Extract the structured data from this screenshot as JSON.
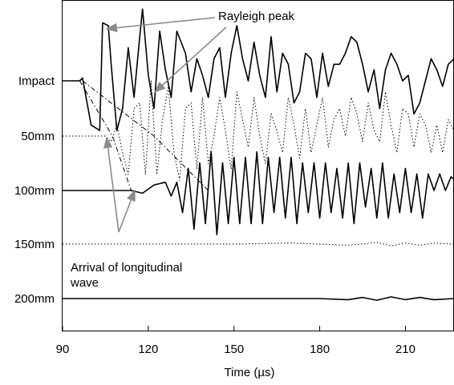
{
  "chart_data": {
    "type": "line",
    "xlabel": "Time (µs)",
    "ylabel": "",
    "xlim": [
      90,
      227
    ],
    "x_ticks": [
      90,
      120,
      150,
      180,
      210
    ],
    "grid": false,
    "legend": "none",
    "rows": [
      "Impact",
      "50mm",
      "100mm",
      "150mm",
      "200mm"
    ],
    "series": [
      {
        "name": "Impact",
        "style": "solid",
        "x": [
          90,
          96,
          97,
          100,
          103,
          104,
          106,
          107,
          109,
          111,
          113,
          115,
          117,
          118,
          120,
          122,
          124,
          126,
          128,
          130,
          133,
          135,
          137,
          139,
          141,
          143,
          145,
          147,
          149,
          151,
          153,
          155,
          157,
          159,
          161,
          163,
          165,
          167,
          169,
          171,
          173,
          175,
          177,
          179,
          181,
          183,
          185,
          187,
          189,
          191,
          193,
          195,
          197,
          199,
          201,
          203,
          205,
          207,
          209,
          211,
          213,
          215,
          217,
          219,
          221,
          223,
          225,
          227
        ],
        "y": [
          0,
          0,
          0.05,
          -0.8,
          -0.9,
          1.05,
          1.0,
          0.3,
          -0.9,
          -0.5,
          0.6,
          -0.3,
          0.8,
          1.3,
          0.1,
          -0.5,
          0.9,
          0.2,
          -0.3,
          0.9,
          0.5,
          -0.2,
          0.4,
          0.1,
          -0.3,
          0.4,
          0.6,
          -0.3,
          0.5,
          1.0,
          0.4,
          0.0,
          0.7,
          0.1,
          -0.3,
          0.8,
          -0.2,
          0.5,
          0.3,
          -0.4,
          -0.2,
          0.5,
          0.4,
          -0.3,
          0.5,
          -0.1,
          0.3,
          0.3,
          0.5,
          0.8,
          0.7,
          0.3,
          -0.2,
          0.2,
          -0.5,
          0.2,
          0.5,
          0.3,
          0.0,
          0.1,
          -0.6,
          -0.4,
          0.0,
          0.4,
          0.2,
          -0.1,
          0.3,
          0.4
        ]
      },
      {
        "name": "50mm",
        "style": "dotted",
        "x": [
          90,
          105,
          107,
          109,
          111,
          113,
          115,
          117,
          119,
          121,
          123,
          125,
          127,
          129,
          131,
          133,
          135,
          137,
          139,
          141,
          143,
          145,
          147,
          149,
          151,
          153,
          155,
          157,
          159,
          161,
          163,
          165,
          167,
          169,
          171,
          173,
          175,
          177,
          179,
          181,
          183,
          185,
          187,
          189,
          191,
          193,
          195,
          197,
          199,
          201,
          203,
          205,
          207,
          209,
          211,
          213,
          215,
          217,
          219,
          221,
          223,
          225,
          227
        ],
        "y": [
          0,
          0,
          -0.1,
          0.2,
          -0.3,
          -0.7,
          0.5,
          0.6,
          -0.7,
          1.0,
          -0.7,
          0.3,
          0.9,
          -0.3,
          -0.8,
          0.5,
          0.6,
          -0.6,
          0.7,
          -0.5,
          0.0,
          0.7,
          0.1,
          -0.6,
          0.8,
          0.3,
          -0.2,
          0.7,
          0.0,
          -0.5,
          0.4,
          0.1,
          -0.3,
          0.7,
          0.2,
          -0.4,
          0.5,
          -0.3,
          0.2,
          0.7,
          -0.2,
          0.3,
          0.5,
          0.0,
          0.7,
          0.4,
          -0.1,
          0.6,
          0.1,
          -0.1,
          0.8,
          0.2,
          -0.3,
          0.5,
          0.4,
          -0.2,
          0.4,
          0.2,
          -0.3,
          0.2,
          -0.3,
          0.3,
          0.1
        ]
      },
      {
        "name": "100mm",
        "style": "solid",
        "x": [
          90,
          114,
          118,
          122,
          126,
          128,
          130,
          132,
          134,
          136,
          138,
          140,
          142,
          144,
          146,
          148,
          150,
          152,
          154,
          156,
          158,
          160,
          162,
          164,
          166,
          168,
          170,
          172,
          174,
          176,
          178,
          180,
          182,
          184,
          186,
          188,
          190,
          192,
          194,
          196,
          198,
          200,
          202,
          204,
          206,
          208,
          210,
          212,
          214,
          216,
          218,
          220,
          222,
          224,
          226,
          227
        ],
        "y": [
          0,
          0,
          -0.05,
          0.1,
          0.15,
          -0.1,
          0.15,
          -0.4,
          0.4,
          -0.7,
          0.5,
          -0.6,
          0.7,
          -0.8,
          0.5,
          -0.6,
          0.6,
          -0.6,
          0.6,
          -0.6,
          0.7,
          -0.6,
          0.6,
          -0.4,
          0.6,
          -0.5,
          0.6,
          -0.6,
          0.5,
          -0.4,
          0.5,
          -0.5,
          0.5,
          -0.4,
          0.4,
          -0.5,
          0.5,
          -0.6,
          0.5,
          -0.3,
          0.4,
          -0.5,
          0.5,
          -0.5,
          0.3,
          -0.4,
          0.4,
          -0.4,
          0.3,
          -0.5,
          0.3,
          0.0,
          0.3,
          0.0,
          0.25,
          0.2
        ]
      },
      {
        "name": "150mm",
        "style": "dotted",
        "x": [
          90,
          150,
          170,
          190,
          200,
          205,
          210,
          215,
          220,
          227
        ],
        "y": [
          0,
          0,
          0.02,
          -0.02,
          0.03,
          -0.03,
          0.02,
          -0.02,
          0.02,
          0
        ]
      },
      {
        "name": "200mm",
        "style": "solid",
        "x": [
          90,
          180,
          190,
          195,
          200,
          205,
          210,
          215,
          220,
          227
        ],
        "y": [
          0,
          0,
          -0.02,
          0.02,
          -0.03,
          0.03,
          -0.02,
          0.02,
          -0.02,
          0
        ]
      }
    ],
    "annotations": [
      {
        "id": "rayleigh",
        "text": "Rayleigh peak"
      },
      {
        "id": "longitudinal",
        "text": "Arrival of longitudinal\nwave"
      }
    ],
    "arrival_lines": [
      {
        "style": "dash-dot",
        "x": [
          96,
          107.5,
          114
        ],
        "row": [
          0,
          1,
          2
        ]
      },
      {
        "style": "dash-dot",
        "x": [
          97,
          122,
          141
        ],
        "row": [
          0,
          1,
          2
        ]
      }
    ]
  }
}
